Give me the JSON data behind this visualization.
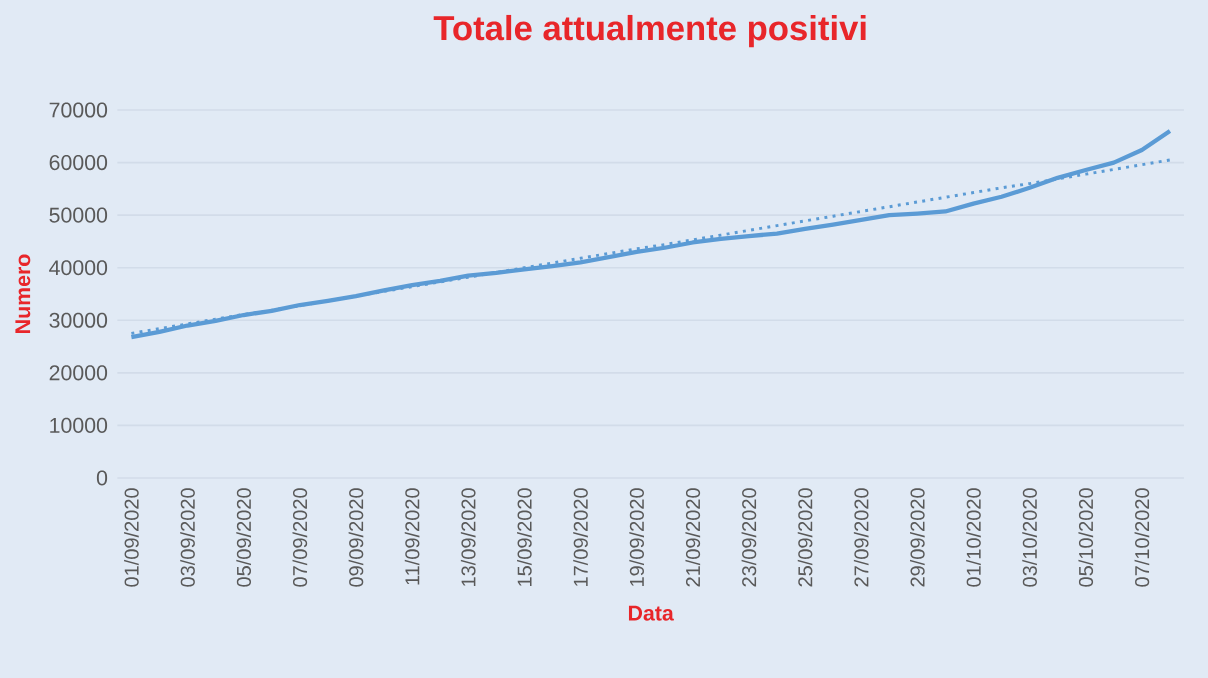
{
  "chart_data": {
    "type": "line",
    "title": "Totale attualmente positivi",
    "xlabel": "Data",
    "ylabel": "Numero",
    "categories": [
      "01/09/2020",
      null,
      "03/09/2020",
      null,
      "05/09/2020",
      null,
      "07/09/2020",
      null,
      "09/09/2020",
      null,
      "11/09/2020",
      null,
      "13/09/2020",
      null,
      "15/09/2020",
      null,
      "17/09/2020",
      null,
      "19/09/2020",
      null,
      "21/09/2020",
      null,
      "23/09/2020",
      null,
      "25/09/2020",
      null,
      "27/09/2020",
      null,
      "29/09/2020",
      null,
      "01/10/2020",
      null,
      "03/10/2020",
      null,
      "05/10/2020",
      null,
      "07/10/2020",
      null
    ],
    "series": [
      {
        "color": "#5b9bd5",
        "line_style": "solid",
        "values": [
          26800,
          27800,
          29000,
          29900,
          31000,
          31800,
          32900,
          33700,
          34600,
          35700,
          36700,
          37500,
          38500,
          39000,
          39700,
          40300,
          41000,
          42000,
          43000,
          43800,
          44800,
          45500,
          46000,
          46500,
          47400,
          48200,
          49100,
          50000,
          50300,
          50700,
          52200,
          53500,
          55200,
          57100,
          58600,
          60000,
          62400,
          66000
        ]
      },
      {
        "color": "#5b9bd5",
        "line_style": "dotted",
        "values": [
          27500,
          28400,
          29300,
          30200,
          31100,
          31900,
          32800,
          33700,
          34600,
          35500,
          36400,
          37300,
          38200,
          39100,
          40000,
          40900,
          41800,
          42700,
          43600,
          44400,
          45300,
          46200,
          47100,
          48000,
          48900,
          49800,
          50700,
          51600,
          52500,
          53400,
          54300,
          55200,
          56000,
          56900,
          57800,
          58700,
          59600,
          60500
        ]
      }
    ],
    "ylim": [
      0,
      70000
    ],
    "yticks": [
      0,
      10000,
      20000,
      30000,
      40000,
      50000,
      60000,
      70000
    ],
    "grid": "y",
    "marker": "none"
  }
}
